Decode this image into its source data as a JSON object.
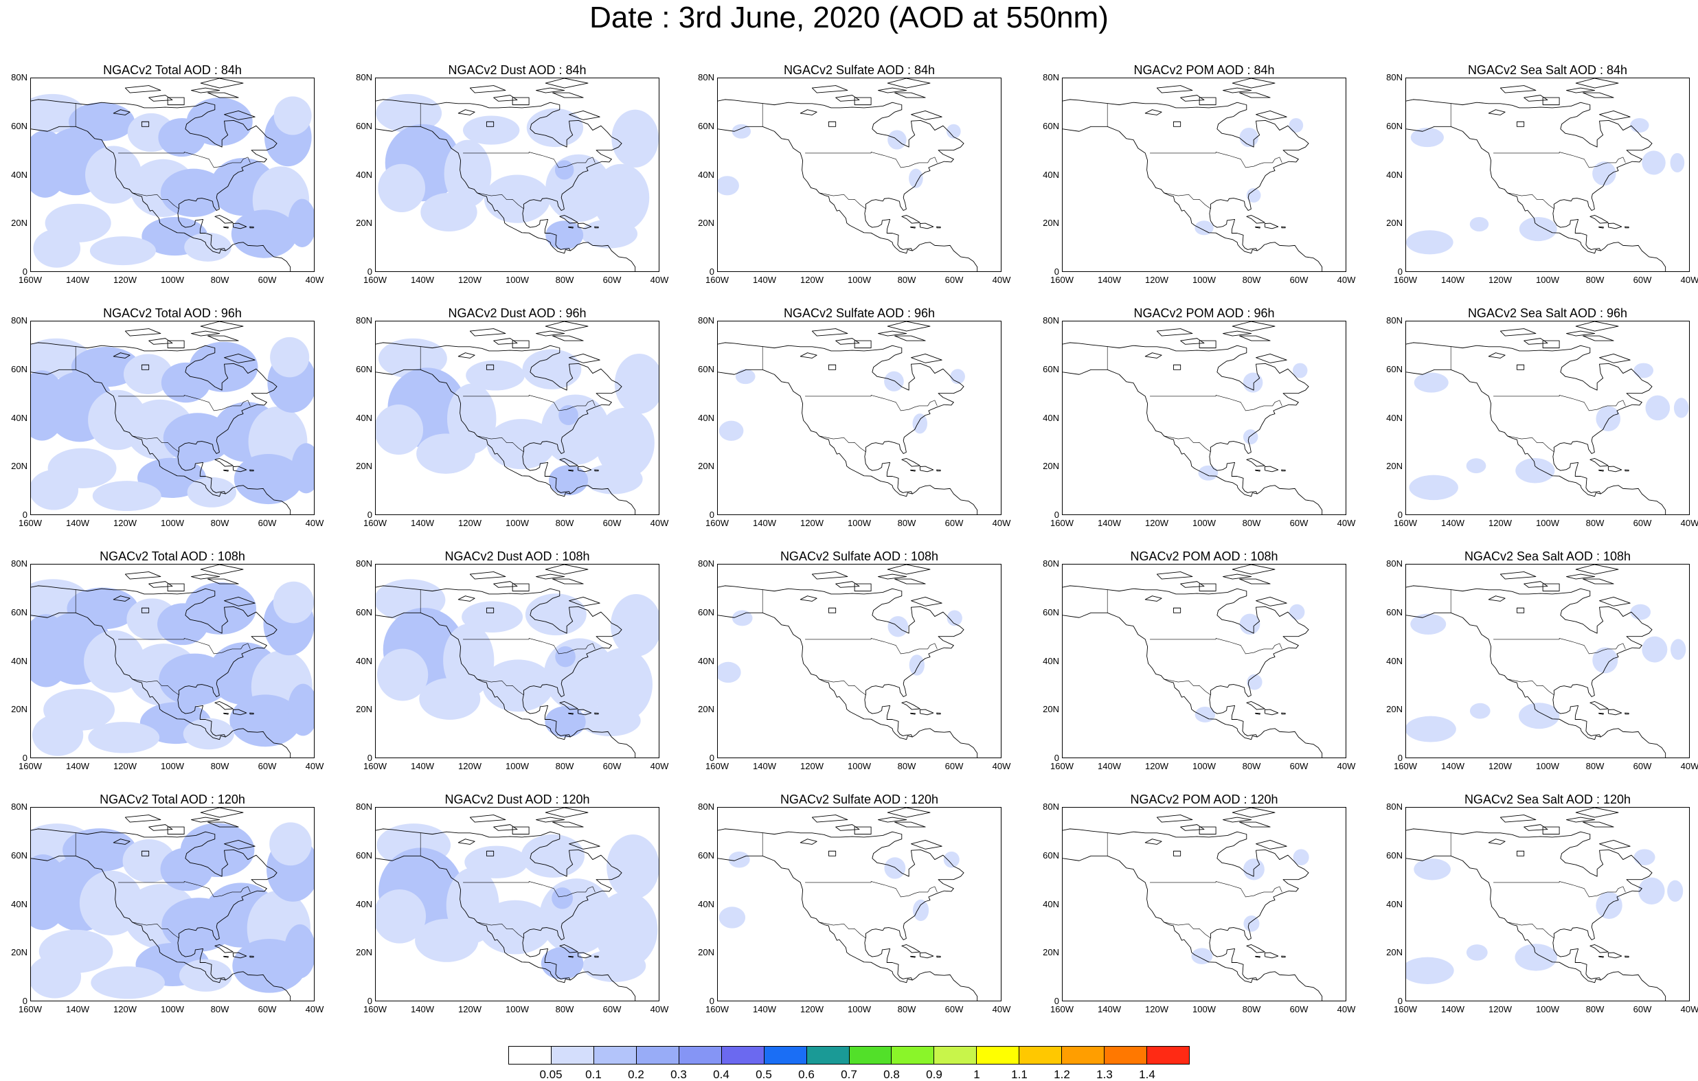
{
  "title": "Date : 3rd June, 2020 (AOD at 550nm)",
  "panels": [
    [
      "NGACv2 Total AOD : 84h",
      "NGACv2 Dust AOD : 84h",
      "NGACv2 Sulfate AOD : 84h",
      "NGACv2 POM AOD : 84h",
      "NGACv2 Sea Salt AOD : 84h"
    ],
    [
      "NGACv2 Total AOD : 96h",
      "NGACv2 Dust AOD : 96h",
      "NGACv2 Sulfate AOD : 96h",
      "NGACv2 POM AOD : 96h",
      "NGACv2 Sea Salt AOD : 96h"
    ],
    [
      "NGACv2 Total AOD : 108h",
      "NGACv2 Dust AOD : 108h",
      "NGACv2 Sulfate AOD : 108h",
      "NGACv2 POM AOD : 108h",
      "NGACv2 Sea Salt AOD : 108h"
    ],
    [
      "NGACv2 Total AOD : 120h",
      "NGACv2 Dust AOD : 120h",
      "NGACv2 Sulfate AOD : 120h",
      "NGACv2 POM AOD : 120h",
      "NGACv2 Sea Salt  AOD : 120h"
    ]
  ],
  "map_axes": {
    "lat_labels": [
      "80N",
      "60N",
      "40N",
      "20N",
      "0"
    ],
    "lon_labels": [
      "160W",
      "140W",
      "120W",
      "100W",
      "80W",
      "60W",
      "40W"
    ]
  },
  "colorbar": {
    "labels": [
      "0.05",
      "0.1",
      "0.2",
      "0.3",
      "0.4",
      "0.5",
      "0.6",
      "0.7",
      "0.8",
      "0.9",
      "1",
      "1.1",
      "1.2",
      "1.3",
      "1.4"
    ],
    "colors": [
      "#ffffff",
      "#d4defc",
      "#b3c4fa",
      "#98acf7",
      "#8595f5",
      "#6b69f0",
      "#1a6ef5",
      "#1a9a96",
      "#52e029",
      "#8af529",
      "#c8f54a",
      "#ffff00",
      "#ffc800",
      "#ff9e00",
      "#ff7800",
      "#ff2a14"
    ]
  },
  "colors": {
    "dust_light": "#d4defc",
    "aod_medium": "#b3c4fa",
    "coast": "#000000"
  }
}
